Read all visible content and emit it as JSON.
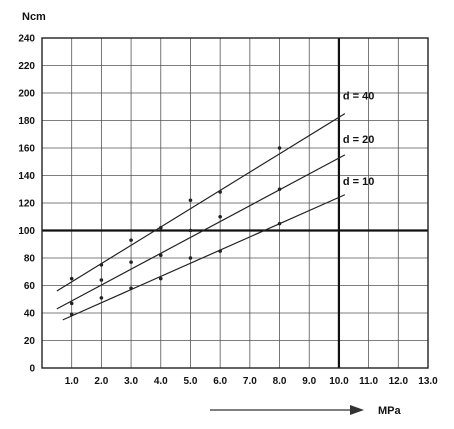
{
  "chart_data": {
    "type": "scatter",
    "title": "",
    "xlabel": "MPa",
    "ylabel": "Ncm",
    "xlim": [
      0,
      13
    ],
    "ylim": [
      0,
      240
    ],
    "x_ticks": [
      1.0,
      2.0,
      3.0,
      4.0,
      5.0,
      6.0,
      7.0,
      8.0,
      9.0,
      10.0,
      11.0,
      12.0,
      13.0
    ],
    "x_tick_labels": [
      "1.0",
      "2.0",
      "3.0",
      "4.0",
      "5.0",
      "6.0",
      "7.0",
      "8.0",
      "9.0",
      "10.0",
      "11.0",
      "12.0",
      "13.0"
    ],
    "y_ticks": [
      0,
      20,
      40,
      60,
      80,
      100,
      120,
      140,
      160,
      180,
      200,
      220,
      240
    ],
    "y_tick_labels": [
      "0",
      "20",
      "40",
      "60",
      "80",
      "100",
      "120",
      "140",
      "160",
      "180",
      "200",
      "220",
      "240"
    ],
    "grid": true,
    "reference_lines": {
      "y": 100,
      "x": 10
    },
    "x_direction_arrow": true,
    "series": [
      {
        "name": "d = 40",
        "points": [
          [
            1,
            65
          ],
          [
            2,
            75
          ],
          [
            3,
            93
          ],
          [
            4,
            102
          ],
          [
            5,
            122
          ],
          [
            6,
            128
          ],
          [
            8,
            160
          ]
        ],
        "fit_line": [
          [
            0.5,
            56
          ],
          [
            10.2,
            185
          ]
        ]
      },
      {
        "name": "d = 20",
        "points": [
          [
            1,
            47
          ],
          [
            2,
            64
          ],
          [
            3,
            77
          ],
          [
            4,
            82
          ],
          [
            5,
            100
          ],
          [
            6,
            110
          ],
          [
            8,
            130
          ]
        ],
        "fit_line": [
          [
            0.5,
            43
          ],
          [
            10.2,
            155
          ]
        ]
      },
      {
        "name": "d = 10",
        "points": [
          [
            1,
            39
          ],
          [
            2,
            51
          ],
          [
            3,
            58
          ],
          [
            4,
            65
          ],
          [
            5,
            80
          ],
          [
            6,
            85
          ],
          [
            8,
            105
          ]
        ],
        "fit_line": [
          [
            0.7,
            35
          ],
          [
            10.2,
            126
          ]
        ]
      }
    ]
  }
}
